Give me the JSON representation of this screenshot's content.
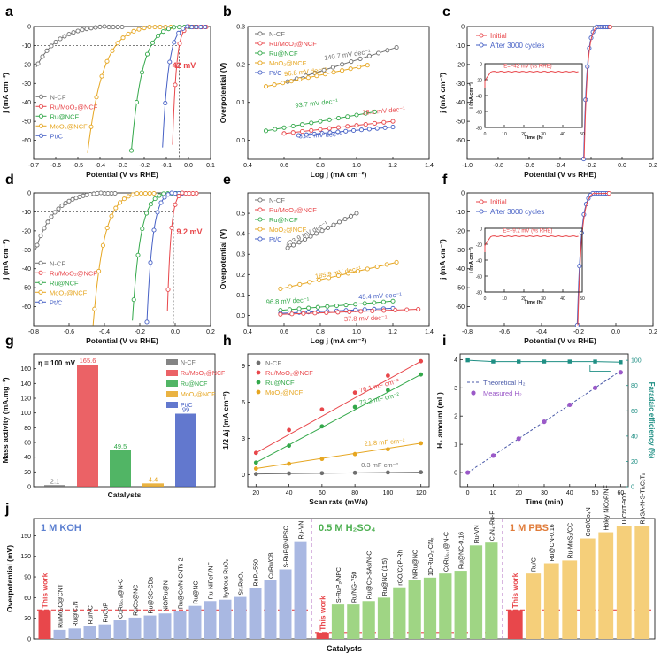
{
  "colors": {
    "ncf": "#6f6f6f",
    "ru_moo2": "#e8474b",
    "ru": "#33a84a",
    "moo2": "#e6a621",
    "ptc": "#4660c5",
    "theory": "#4a5aa8",
    "measured": "#9b59c8",
    "fe": "#1f8f84",
    "kohBar": "#a9b8e2",
    "acidBar": "#9fd584",
    "pbsBar": "#f5cf7a",
    "thisWork": "#e8474b",
    "koh": "#5b7fd0",
    "acid": "#4caf50",
    "pbs": "#e07b39"
  },
  "panels": {
    "a": "a",
    "b": "b",
    "c": "c",
    "d": "d",
    "e": "e",
    "f": "f",
    "g": "g",
    "h": "h",
    "i": "i",
    "j": "j"
  },
  "legend5": {
    "ncf": "N-CF",
    "ru_moo2": "Ru/MoO₂@NCF",
    "ru": "Ru@NCF",
    "moo2": "MoO₂@NCF",
    "ptc": "Pt/C"
  },
  "stability_legend": {
    "initial": "Initial",
    "after": "After 3000 cycles"
  },
  "axes": {
    "potential": "Potential (V vs RHE)",
    "j": "j (mA cm⁻²)",
    "overpotential": "Overpotential (V)",
    "logj": "Log j (mA cm⁻²)",
    "mass_activity": "Mass activity (mA.mg⁻¹)",
    "catalysts": "Catalysts",
    "scan_rate": "Scan rate (mV/s)",
    "half_dj": "1/2 Δj (mA cm⁻²)",
    "time": "Time (min)",
    "h2_amount": "H₂ amount (mL)",
    "faradaic": "Faradaic efficiency (%)",
    "overpotential_mv": "Overpotential (mV)",
    "inset_time": "Time (h)",
    "inset_j": "j (mA cm⁻²)"
  },
  "chart_data": [
    {
      "panel": "a",
      "type": "line",
      "title": "",
      "xlabel": "Potential (V vs RHE)",
      "ylabel": "j (mA cm⁻²)",
      "xlim": [
        -0.7,
        0.1
      ],
      "ylim": [
        -70,
        0
      ],
      "xticks": [
        "-0.7",
        "-0.6",
        "-0.5",
        "-0.4",
        "-0.3",
        "-0.2",
        "-0.1",
        "0.0",
        "0.1"
      ],
      "yticks": [
        "-60",
        "-50",
        "-40",
        "-30",
        "-20",
        "-10",
        "0"
      ],
      "series": [
        {
          "name": "N-CF",
          "onset": -0.38,
          "at": -0.6
        },
        {
          "name": "Ru/MoO₂@NCF",
          "onset": 0.0,
          "at": -0.09
        },
        {
          "name": "Ru@NCF",
          "onset": -0.04,
          "at": -0.17
        },
        {
          "name": "MoO₂@NCF",
          "onset": -0.16,
          "at": -0.34
        },
        {
          "name": "Pt/C",
          "onset": 0.0,
          "at": -0.09
        }
      ],
      "annotation": "42 mV"
    },
    {
      "panel": "b",
      "type": "scatter",
      "xlabel": "Log j (mA cm⁻²)",
      "ylabel": "Overpotential (V)",
      "xlim": [
        0.4,
        1.4
      ],
      "ylim": [
        -0.05,
        0.3
      ],
      "xticks": [
        "0.4",
        "0.6",
        "0.8",
        "1.0",
        "1.2",
        "1.4"
      ],
      "yticks": [
        "0.0",
        "0.1",
        "0.2",
        "0.3"
      ],
      "tafel": [
        {
          "name": "N-CF",
          "label": "140.7 mV dec⁻¹",
          "start": 0.155,
          "end": 0.245
        },
        {
          "name": "MoO₂@NCF",
          "label": "96.8 mV dec⁻¹",
          "start": 0.14,
          "end": 0.2
        },
        {
          "name": "Ru@NCF",
          "label": "93.7 mV dec⁻¹",
          "start": 0.025,
          "end": 0.075
        },
        {
          "name": "Ru/MoO₂@NCF",
          "label": "38.1 mV dec⁻¹",
          "start": 0.018,
          "end": 0.05
        },
        {
          "name": "Pt/C",
          "label": "31.5 mV dec⁻¹",
          "start": 0.012,
          "end": 0.035
        }
      ]
    },
    {
      "panel": "c",
      "type": "line",
      "xlabel": "Potential (V vs RHE)",
      "ylabel": "j (mA cm⁻²)",
      "xlim": [
        -1.0,
        0.2
      ],
      "ylim": [
        -70,
        0
      ],
      "xticks": [
        "-1.0",
        "-0.8",
        "-0.6",
        "-0.4",
        "-0.2",
        "0.0",
        "0.2"
      ],
      "yticks": [
        "-60",
        "-50",
        "-40",
        "-30",
        "-20",
        "-10",
        "0"
      ],
      "inset": {
        "label": "E=−42 mV (vs RHE)",
        "xticks": [
          "0",
          "10",
          "20",
          "30",
          "40",
          "50"
        ],
        "yticks": [
          "-80",
          "-60",
          "-40",
          "-20",
          "0"
        ],
        "j": -10
      }
    },
    {
      "panel": "d",
      "type": "line",
      "xlabel": "Potential (V vs RHE)",
      "ylabel": "j (mA cm⁻²)",
      "xlim": [
        -0.8,
        0.2
      ],
      "ylim": [
        -70,
        0
      ],
      "xticks": [
        "-0.8",
        "-0.6",
        "-0.4",
        "-0.2",
        "0.0",
        "0.2"
      ],
      "yticks": [
        "-60",
        "-50",
        "-40",
        "-30",
        "-20",
        "-10",
        "0"
      ],
      "annotation": "9.2 mV"
    },
    {
      "panel": "e",
      "type": "scatter",
      "xlabel": "Log j (mA cm⁻²)",
      "ylabel": "Overpotential (V)",
      "xlim": [
        0.4,
        1.4
      ],
      "ylim": [
        -0.05,
        0.6
      ],
      "xticks": [
        "0.4",
        "0.6",
        "0.8",
        "1.0",
        "1.2",
        "1.4"
      ],
      "yticks": [
        "0.0",
        "0.1",
        "0.2",
        "0.3",
        "0.4",
        "0.5"
      ],
      "tafel": [
        {
          "name": "N-CF",
          "label": "433.9 mV dec⁻¹"
        },
        {
          "name": "MoO₂@NCF",
          "label": "185.9 mV dec⁻¹"
        },
        {
          "name": "Ru@NCF",
          "label": "96.8 mV dec⁻¹"
        },
        {
          "name": "Pt/C",
          "label": "45.4 mV dec⁻¹"
        },
        {
          "name": "Ru/MoO₂@NCF",
          "label": "37.8 mV dec⁻¹"
        }
      ]
    },
    {
      "panel": "f",
      "type": "line",
      "xlabel": "Potential (V vs RHE)",
      "ylabel": "j (mA cm⁻²)",
      "xlim": [
        -0.8,
        0.2
      ],
      "ylim": [
        -70,
        0
      ],
      "xticks": [
        "-0.8",
        "-0.6",
        "-0.4",
        "-0.2",
        "0.0",
        "0.2"
      ],
      "yticks": [
        "-60",
        "-50",
        "-40",
        "-30",
        "-20",
        "-10",
        "0"
      ],
      "inset": {
        "label": "E=−9.2 mV (vs RHE)",
        "xticks": [
          "0",
          "10",
          "20",
          "30",
          "40",
          "50"
        ],
        "yticks": [
          "-80",
          "-60",
          "-40",
          "-20",
          "0"
        ],
        "j": -10
      }
    },
    {
      "panel": "g",
      "type": "bar",
      "title": "η = 100 mV",
      "xlabel": "Catalysts",
      "ylabel": "Mass activity (mA.mg⁻¹)",
      "ylim": [
        0,
        180
      ],
      "yticks": [
        "0",
        "20",
        "40",
        "60",
        "80",
        "100",
        "120",
        "140",
        "160"
      ],
      "categories": [
        "N-CF",
        "Ru/MoO₂@NCF",
        "Ru@NCF",
        "MoO₂@NCF",
        "Pt/C"
      ],
      "values": [
        2.1,
        165.6,
        49.5,
        4.4,
        99
      ],
      "labels": [
        "2.1",
        "165.6",
        "49.5",
        "4.4",
        "99"
      ]
    },
    {
      "panel": "h",
      "type": "scatter",
      "xlabel": "Scan rate (mV/s)",
      "ylabel": "1/2 Δj (mA cm⁻²)",
      "xlim": [
        15,
        125
      ],
      "ylim": [
        -1,
        10
      ],
      "xticks": [
        "20",
        "40",
        "60",
        "80",
        "100",
        "120"
      ],
      "yticks": [
        "0",
        "3",
        "6",
        "9"
      ],
      "x": [
        20,
        40,
        60,
        80,
        100,
        120
      ],
      "series": [
        {
          "name": "N-CF",
          "values": [
            0.05,
            0.1,
            0.12,
            0.15,
            0.18,
            0.2
          ],
          "label": "0.3 mF cm⁻²"
        },
        {
          "name": "Ru/MoO₂@NCF",
          "values": [
            1.8,
            3.7,
            5.4,
            6.8,
            8.2,
            9.4
          ],
          "label": "76.1 mF cm⁻²"
        },
        {
          "name": "Ru@NCF",
          "values": [
            1.0,
            2.4,
            4.0,
            5.6,
            7.0,
            8.3
          ],
          "label": "73.2 mF cm⁻²"
        },
        {
          "name": "MoO₂@NCF",
          "values": [
            0.5,
            0.9,
            1.3,
            1.7,
            2.1,
            2.6
          ],
          "label": "21.8 mF cm⁻²"
        }
      ]
    },
    {
      "panel": "i",
      "type": "line",
      "xlabel": "Time (min)",
      "ylabel": "H₂ amount (mL)",
      "ylabel2": "Faradaic efficiency (%)",
      "xlim": [
        -3,
        63
      ],
      "ylim": [
        -0.5,
        4.2
      ],
      "ylim2": [
        0,
        105
      ],
      "xticks": [
        "0",
        "10",
        "20",
        "30",
        "40",
        "50",
        "60"
      ],
      "yticks": [
        "0",
        "1",
        "2",
        "3",
        "4"
      ],
      "yticks2": [
        "0",
        "20",
        "40",
        "60",
        "80",
        "100"
      ],
      "x": [
        0,
        10,
        20,
        30,
        40,
        50,
        60
      ],
      "theoretical": [
        0,
        0.6,
        1.2,
        1.8,
        2.4,
        3.0,
        3.6
      ],
      "measured": [
        0,
        0.6,
        1.2,
        1.8,
        2.4,
        3.0,
        3.55
      ],
      "faradaic": [
        100,
        99,
        99,
        99,
        99,
        99,
        98.5
      ],
      "legend": [
        "Theoretical H₂",
        "Measured H₂"
      ]
    },
    {
      "panel": "j",
      "type": "bar",
      "xlabel": "Catalysts",
      "ylabel": "Overpotential (mV)",
      "ylim": [
        0,
        175
      ],
      "yticks": [
        "0",
        "30",
        "60",
        "90",
        "120",
        "150"
      ],
      "groups": [
        {
          "name": "1 M KOH",
          "this_work": 42,
          "labels": [
            "Ru/Mo₂C@CNT",
            "Ru@C₃N",
            "Ru/NC",
            "RuCoP",
            "CoRu₀.₅@N-C",
            "RuCo@NC",
            "Ru@SC-CDs",
            "NiO/Ru@Ni",
            "Ru@Co/N-CNTs-2",
            "Ru@NC",
            "Ru-NiFeP/NF",
            "hydrous RuO₂",
            "Sr₂RuO₄",
            "RuP₂-550",
            "CuRu/CB",
            "S-RuP@NPSC",
            "Ru-VN"
          ],
          "values": [
            13,
            15,
            19,
            21,
            27,
            31,
            34,
            37,
            41,
            48,
            55,
            57,
            61,
            74,
            85,
            101,
            142
          ]
        },
        {
          "name": "0.5 M H₂SO₄",
          "this_work": 9.2,
          "labels": [
            "S-RuP₂/NPC",
            "Ru/NG-750",
            "Ru@Co-SAs/N-C",
            "Ru@NC (1:5)",
            "rGO/CoP-Rh",
            "NiRu@NC",
            "1D-RuO₂-CNₓ",
            "CoRu₀.₅@N-C",
            "Ru@NC-0.16",
            "Ru-VN",
            "C₃N₄-Ru-F"
          ],
          "values": [
            50,
            50,
            55,
            60,
            75,
            85,
            89,
            95,
            99,
            136,
            140
          ]
        },
        {
          "name": "1 M PBS",
          "this_work": 42,
          "labels": [
            "Ru/C",
            "Ru@CN-0.16",
            "Ru-MoS₂/CC",
            "CoO/Co₄N",
            "Holey NiCoP/NF",
            "U-CNT-900",
            "RuSA-N-S-Ti₃C₂Tₓ"
          ],
          "values": [
            95,
            110,
            114,
            146,
            155,
            164,
            164
          ]
        }
      ],
      "this_work_label": "This work"
    }
  ]
}
